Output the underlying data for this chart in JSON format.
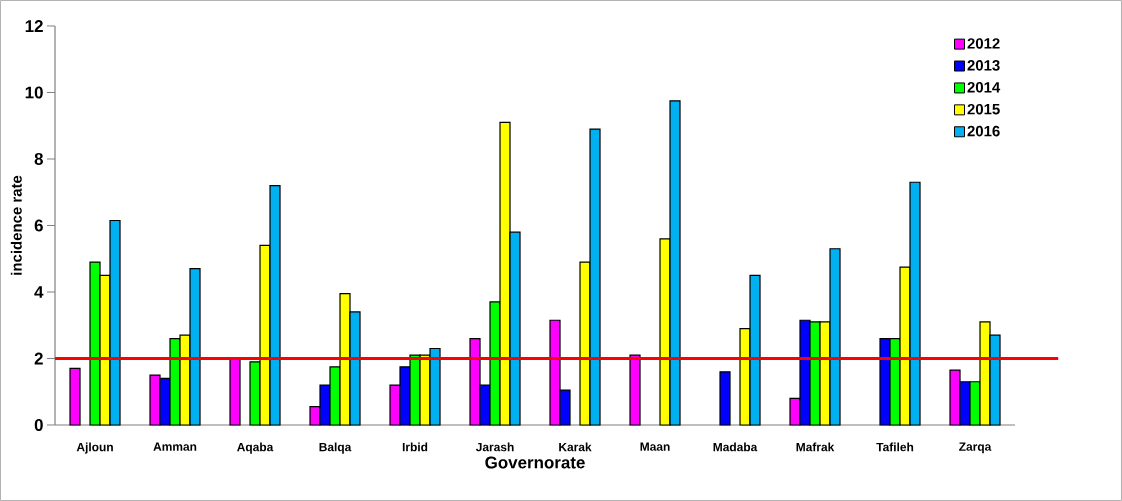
{
  "chart_data": {
    "type": "bar",
    "xlabel": "Governorate",
    "ylabel": "incidence rate",
    "categories": [
      "Ajloun",
      "Amman",
      "Aqaba",
      "Balqa",
      "Irbid",
      "Jarash",
      "Karak",
      "Maan",
      "Madaba",
      "Mafrak",
      "Tafileh",
      "Zarqa"
    ],
    "series": [
      {
        "name": "2012",
        "color": "#ff00ff",
        "values": [
          1.7,
          1.5,
          2.0,
          0.55,
          1.2,
          2.6,
          3.15,
          2.1,
          null,
          0.8,
          null,
          1.65
        ]
      },
      {
        "name": "2013",
        "color": "#0000ff",
        "values": [
          null,
          1.4,
          null,
          1.2,
          1.75,
          1.2,
          1.05,
          null,
          1.6,
          3.15,
          2.6,
          1.3
        ]
      },
      {
        "name": "2014",
        "color": "#00ff00",
        "values": [
          4.9,
          2.6,
          1.9,
          1.75,
          2.1,
          3.7,
          null,
          null,
          null,
          3.1,
          2.6,
          1.3
        ]
      },
      {
        "name": "2015",
        "color": "#ffff00",
        "values": [
          4.5,
          2.7,
          5.4,
          3.95,
          2.1,
          9.1,
          4.9,
          5.6,
          2.9,
          3.1,
          4.75,
          3.1
        ]
      },
      {
        "name": "2016",
        "color": "#00b0f0",
        "values": [
          6.15,
          4.7,
          7.2,
          3.4,
          2.3,
          5.8,
          8.9,
          9.75,
          4.5,
          5.3,
          7.3,
          2.7
        ]
      }
    ],
    "ylim": [
      0,
      12
    ],
    "yticks": [
      0,
      2,
      4,
      6,
      8,
      10,
      12
    ],
    "ref_lines": [
      {
        "axis": "y",
        "value": 2,
        "color": "#ff0000"
      }
    ],
    "legend": "top right",
    "grid": false
  }
}
